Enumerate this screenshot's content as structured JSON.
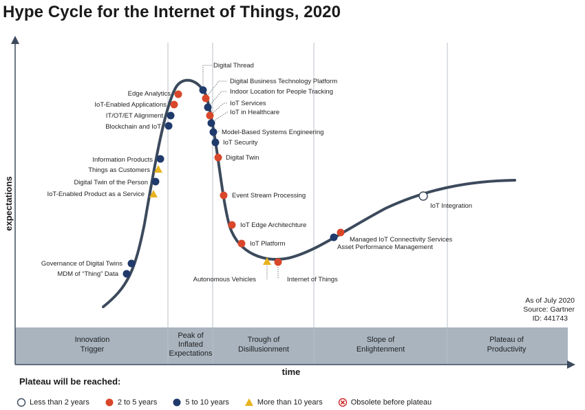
{
  "title": "Hype Cycle for the Internet of Things, 2020",
  "axes": {
    "y_label": "expectations",
    "x_label": "time"
  },
  "source": {
    "as_of": "As of July 2020",
    "source": "Source: Gartner",
    "id": "ID: 441743"
  },
  "phases": [
    {
      "lines": [
        "Innovation",
        "Trigger"
      ]
    },
    {
      "lines": [
        "Peak of",
        "Inflated",
        "Expectations"
      ]
    },
    {
      "lines": [
        "Trough of",
        "Disillusionment"
      ]
    },
    {
      "lines": [
        "Slope of",
        "Enlightenment"
      ]
    },
    {
      "lines": [
        "Plateau of",
        "Productivity"
      ]
    }
  ],
  "colors": {
    "lt2": "#ffffff",
    "two_to_five": "#d9472b",
    "five_to_ten": "#1f3a6b",
    "gt10": "#e8b31e",
    "obsolete": "#cc2b2b",
    "curve": "#3c4a5c",
    "band": "#a9b4bf"
  },
  "technologies": [
    {
      "name": "Digital Thread",
      "class": "5-10"
    },
    {
      "name": "Edge Analytics",
      "class": "2-5"
    },
    {
      "name": "IoT-Enabled Applications",
      "class": "2-5"
    },
    {
      "name": "IT/OT/ET Alignment",
      "class": "5-10"
    },
    {
      "name": "Blockchain and IoT",
      "class": "5-10"
    },
    {
      "name": "Digital Business Technology Platform",
      "class": "2-5"
    },
    {
      "name": "Indoor Location for People Tracking",
      "class": "5-10"
    },
    {
      "name": "IoT Services",
      "class": "2-5"
    },
    {
      "name": "IoT in Healthcare",
      "class": "2-5"
    },
    {
      "name": "Model-Based Systems Engineering",
      "class": "5-10"
    },
    {
      "name": "IoT Security",
      "class": "5-10"
    },
    {
      "name": "Digital Twin",
      "class": "2-5"
    },
    {
      "name": "Information Products",
      "class": "5-10"
    },
    {
      "name": "Things as Customers",
      "class": ">10"
    },
    {
      "name": "Digital Twin of the Person",
      "class": "5-10"
    },
    {
      "name": "IoT-Enabled Product as a Service",
      "class": ">10"
    },
    {
      "name": "Event Stream Processing",
      "class": "2-5"
    },
    {
      "name": "IoT Edge Architechture",
      "class": "2-5"
    },
    {
      "name": "IoT Platform",
      "class": "2-5"
    },
    {
      "name": "Governance of Digital Twins",
      "class": "5-10"
    },
    {
      "name": "MDM of “Thing” Data",
      "class": "5-10"
    },
    {
      "name": "Autonomous Vehicles",
      "class": ">10"
    },
    {
      "name": "Internet of Things",
      "class": "2-5"
    },
    {
      "name": "Managed IoT Connectivity Services",
      "class": "2-5"
    },
    {
      "name": "Asset Performance Management",
      "class": "5-10"
    },
    {
      "name": "IoT Integration",
      "class": "<2"
    }
  ],
  "legend": {
    "title": "Plateau will be reached:",
    "items": [
      {
        "label": "Less than 2 years",
        "class": "<2"
      },
      {
        "label": "2 to 5 years",
        "class": "2-5"
      },
      {
        "label": "5 to 10 years",
        "class": "5-10"
      },
      {
        "label": "More than 10 years",
        "class": ">10"
      },
      {
        "label": "Obsolete before plateau",
        "class": "obsolete"
      }
    ]
  }
}
